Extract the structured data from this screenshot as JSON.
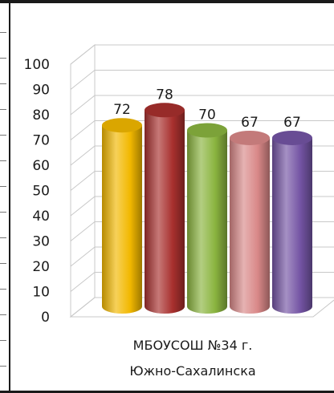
{
  "chart_data": {
    "type": "bar",
    "style": "3d-cylinder",
    "categories": [
      "МБОУСОШ №34 г. Южно-Сахалинска"
    ],
    "category_lines": [
      "МБОУСОШ №34 г.",
      "Южно-Сахалинска"
    ],
    "series": [
      {
        "values": [
          72
        ],
        "color": "#f2b800"
      },
      {
        "values": [
          78
        ],
        "color": "#a8302e"
      },
      {
        "values": [
          70
        ],
        "color": "#8ab43f"
      },
      {
        "values": [
          67
        ],
        "color": "#d98888"
      },
      {
        "values": [
          67
        ],
        "color": "#7454a4"
      }
    ],
    "yticks": [
      "0",
      "10",
      "20",
      "30",
      "40",
      "50",
      "60",
      "70",
      "80",
      "90",
      "100"
    ],
    "ylim": [
      0,
      100
    ],
    "grid": true
  }
}
